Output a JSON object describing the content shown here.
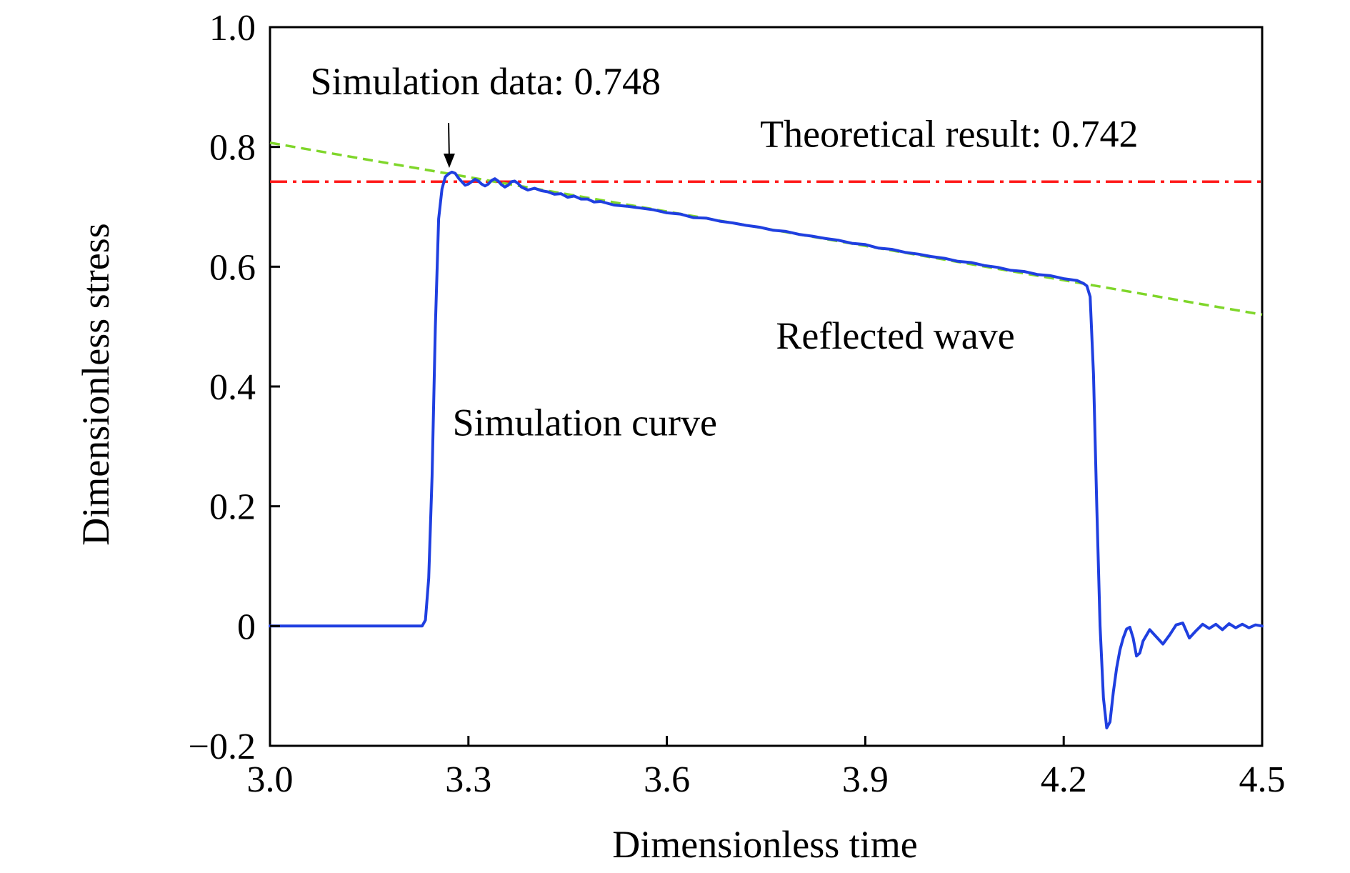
{
  "chart_data": {
    "type": "line",
    "title": "",
    "xlabel": "Dimensionless time",
    "ylabel": "Dimensionless stress",
    "xlim": [
      3.0,
      4.5
    ],
    "ylim": [
      -0.2,
      1.0
    ],
    "xticks": [
      3.0,
      3.3,
      3.6,
      3.9,
      4.2,
      4.5
    ],
    "xtick_labels": [
      "3.0",
      "3.3",
      "3.6",
      "3.9",
      "4.2",
      "4.5"
    ],
    "yticks": [
      -0.2,
      0,
      0.2,
      0.4,
      0.6,
      0.8,
      1.0
    ],
    "ytick_labels": [
      "−0.2",
      "0",
      "0.2",
      "0.4",
      "0.6",
      "0.8",
      "1.0"
    ],
    "grid": false,
    "legend": "none",
    "series": [
      {
        "role": "simulation",
        "color": "#1f3fe0",
        "style": "solid",
        "x": [
          3.0,
          3.1,
          3.2,
          3.22,
          3.23,
          3.235,
          3.24,
          3.245,
          3.25,
          3.255,
          3.26,
          3.265,
          3.27,
          3.275,
          3.28,
          3.285,
          3.29,
          3.295,
          3.3,
          3.305,
          3.31,
          3.315,
          3.32,
          3.325,
          3.33,
          3.335,
          3.34,
          3.345,
          3.35,
          3.355,
          3.36,
          3.365,
          3.37,
          3.375,
          3.38,
          3.39,
          3.4,
          3.41,
          3.42,
          3.43,
          3.44,
          3.45,
          3.46,
          3.47,
          3.48,
          3.49,
          3.5,
          3.52,
          3.54,
          3.56,
          3.58,
          3.6,
          3.62,
          3.64,
          3.66,
          3.68,
          3.7,
          3.72,
          3.74,
          3.76,
          3.78,
          3.8,
          3.82,
          3.84,
          3.86,
          3.88,
          3.9,
          3.92,
          3.94,
          3.96,
          3.98,
          4.0,
          4.02,
          4.04,
          4.06,
          4.08,
          4.1,
          4.12,
          4.14,
          4.16,
          4.18,
          4.2,
          4.22,
          4.23,
          4.235,
          4.24,
          4.245,
          4.25,
          4.255,
          4.26,
          4.265,
          4.27,
          4.275,
          4.28,
          4.285,
          4.29,
          4.295,
          4.3,
          4.305,
          4.31,
          4.315,
          4.32,
          4.33,
          4.34,
          4.35,
          4.36,
          4.37,
          4.38,
          4.39,
          4.4,
          4.41,
          4.42,
          4.43,
          4.44,
          4.45,
          4.46,
          4.47,
          4.48,
          4.49,
          4.5
        ],
        "y": [
          0.0,
          0.0,
          0.0,
          0.0,
          0.0,
          0.01,
          0.08,
          0.25,
          0.5,
          0.68,
          0.73,
          0.75,
          0.755,
          0.758,
          0.756,
          0.748,
          0.742,
          0.736,
          0.738,
          0.742,
          0.746,
          0.743,
          0.738,
          0.735,
          0.738,
          0.744,
          0.747,
          0.743,
          0.737,
          0.733,
          0.736,
          0.742,
          0.743,
          0.739,
          0.733,
          0.728,
          0.731,
          0.727,
          0.725,
          0.721,
          0.722,
          0.716,
          0.718,
          0.713,
          0.713,
          0.708,
          0.709,
          0.703,
          0.701,
          0.698,
          0.695,
          0.69,
          0.688,
          0.682,
          0.681,
          0.676,
          0.673,
          0.669,
          0.666,
          0.661,
          0.659,
          0.654,
          0.651,
          0.647,
          0.644,
          0.639,
          0.637,
          0.631,
          0.629,
          0.624,
          0.621,
          0.617,
          0.614,
          0.609,
          0.607,
          0.602,
          0.599,
          0.594,
          0.592,
          0.587,
          0.585,
          0.58,
          0.577,
          0.572,
          0.568,
          0.55,
          0.42,
          0.2,
          0.0,
          -0.12,
          -0.17,
          -0.16,
          -0.11,
          -0.07,
          -0.04,
          -0.02,
          -0.005,
          -0.002,
          -0.02,
          -0.05,
          -0.045,
          -0.025,
          -0.006,
          -0.018,
          -0.03,
          -0.015,
          0.002,
          0.005,
          -0.02,
          -0.008,
          0.003,
          -0.004,
          0.003,
          -0.006,
          0.004,
          -0.003,
          0.003,
          -0.003,
          0.002,
          0.0
        ]
      },
      {
        "role": "theoretical",
        "color": "#ff1a1a",
        "style": "dash-dot",
        "x": [
          3.0,
          4.5
        ],
        "y": [
          0.742,
          0.742
        ]
      },
      {
        "role": "trend",
        "color": "#7fd62a",
        "style": "dashed",
        "x": [
          3.0,
          4.5
        ],
        "y": [
          0.807,
          0.52
        ]
      }
    ],
    "annotations": [
      {
        "text": "Simulation data: 0.748",
        "x": 3.061,
        "y": 0.888
      },
      {
        "text": "Theoretical result: 0.742",
        "x": 3.741,
        "y": 0.8
      },
      {
        "text": "Reflected wave",
        "x": 3.765,
        "y": 0.463
      },
      {
        "text": "Simulation curve",
        "x": 3.276,
        "y": 0.318
      }
    ],
    "arrow": {
      "from": [
        3.27,
        0.84
      ],
      "to": [
        3.271,
        0.765
      ]
    }
  }
}
